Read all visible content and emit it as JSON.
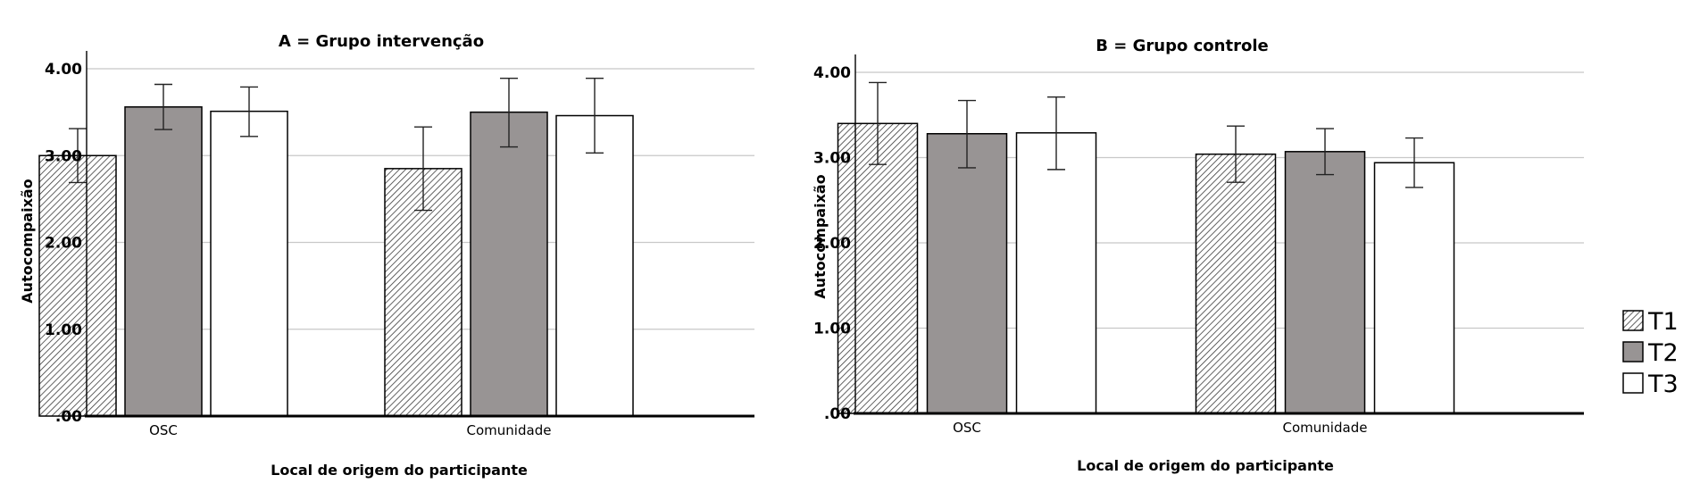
{
  "chart_data": [
    {
      "type": "bar",
      "title": "A = Grupo intervenção",
      "xlabel": "Local de origem do participante",
      "ylabel": "Autocompaixão",
      "categories": [
        "OSC",
        "Comunidade"
      ],
      "ylim": [
        0,
        4.2
      ],
      "yticks": [
        ".00",
        "1.00",
        "2.00",
        "3.00",
        "4.00"
      ],
      "grid": true,
      "series": [
        {
          "name": "T1",
          "values": [
            3.0,
            2.85
          ],
          "err_low": [
            2.69,
            2.37
          ],
          "err_high": [
            3.31,
            3.33
          ]
        },
        {
          "name": "T2",
          "values": [
            3.56,
            3.5
          ],
          "err_low": [
            3.3,
            3.1
          ],
          "err_high": [
            3.82,
            3.89
          ]
        },
        {
          "name": "T3",
          "values": [
            3.51,
            3.46
          ],
          "err_low": [
            3.22,
            3.03
          ],
          "err_high": [
            3.79,
            3.89
          ]
        }
      ]
    },
    {
      "type": "bar",
      "title": "B = Grupo controle",
      "xlabel": "Local de origem do participante",
      "ylabel": "Autocompaixão",
      "categories": [
        "OSC",
        "Comunidade"
      ],
      "ylim": [
        0,
        4.2
      ],
      "yticks": [
        ".00",
        "1.00",
        "2.00",
        "3.00",
        "4.00"
      ],
      "grid": true,
      "series": [
        {
          "name": "T1",
          "values": [
            3.4,
            3.04
          ],
          "err_low": [
            2.92,
            2.71
          ],
          "err_high": [
            3.88,
            3.37
          ]
        },
        {
          "name": "T2",
          "values": [
            3.28,
            3.07
          ],
          "err_low": [
            2.88,
            2.8
          ],
          "err_high": [
            3.67,
            3.34
          ]
        },
        {
          "name": "T3",
          "values": [
            3.29,
            2.94
          ],
          "err_low": [
            2.86,
            2.65
          ],
          "err_high": [
            3.71,
            3.23
          ]
        }
      ]
    }
  ],
  "legend": {
    "position": "right",
    "items": [
      {
        "label": "T1",
        "fill": "hatched"
      },
      {
        "label": "T2",
        "fill": "#989494"
      },
      {
        "label": "T3",
        "fill": "#ffffff"
      }
    ]
  },
  "colors": {
    "t1_bg": "#ffffff",
    "t2": "#989494",
    "t3": "#ffffff",
    "grid": "#c8c8c8",
    "axis": "#000000"
  }
}
